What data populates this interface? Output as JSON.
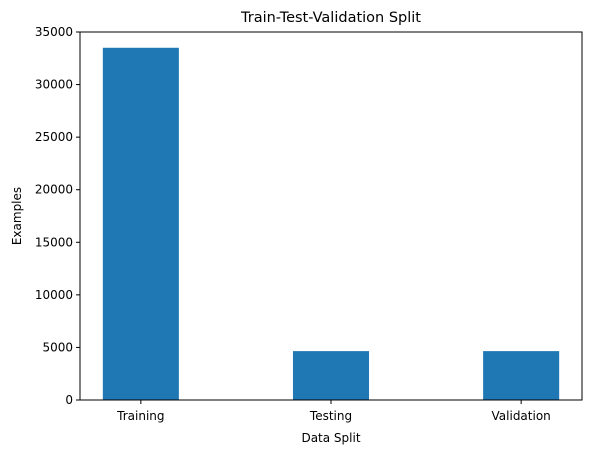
{
  "chart_data": {
    "type": "bar",
    "title": "Train-Test-Validation Split",
    "xlabel": "Data Split",
    "ylabel": "Examples",
    "categories": [
      "Training",
      "Testing",
      "Validation"
    ],
    "values": [
      33500,
      4650,
      4650
    ],
    "ylim": [
      0,
      35000
    ],
    "yticks": [
      0,
      5000,
      10000,
      15000,
      20000,
      25000,
      30000,
      35000
    ],
    "grid": false,
    "legend": "none",
    "bar_color": "#1f77b4"
  }
}
